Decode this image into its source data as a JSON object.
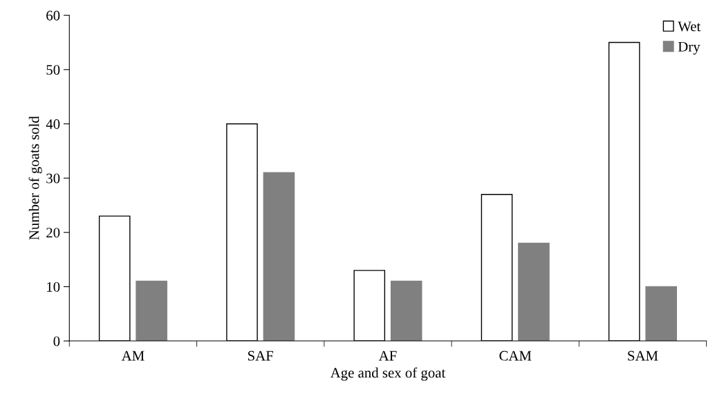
{
  "chart_data": {
    "type": "bar",
    "xlabel": "Age and sex of goat",
    "ylabel": "Number of goats sold",
    "categories": [
      "AM",
      "SAF",
      "AF",
      "CAM",
      "SAM"
    ],
    "series": [
      {
        "name": "Wet",
        "color": "#ffffff",
        "values": [
          23,
          40,
          13,
          27,
          55
        ]
      },
      {
        "name": "Dry",
        "color": "#808080",
        "values": [
          11,
          31,
          11,
          18,
          10
        ]
      }
    ],
    "ylim": [
      0,
      60
    ],
    "yticks": [
      0,
      10,
      20,
      30,
      40,
      50,
      60
    ],
    "grid": false,
    "legend": "top right"
  }
}
